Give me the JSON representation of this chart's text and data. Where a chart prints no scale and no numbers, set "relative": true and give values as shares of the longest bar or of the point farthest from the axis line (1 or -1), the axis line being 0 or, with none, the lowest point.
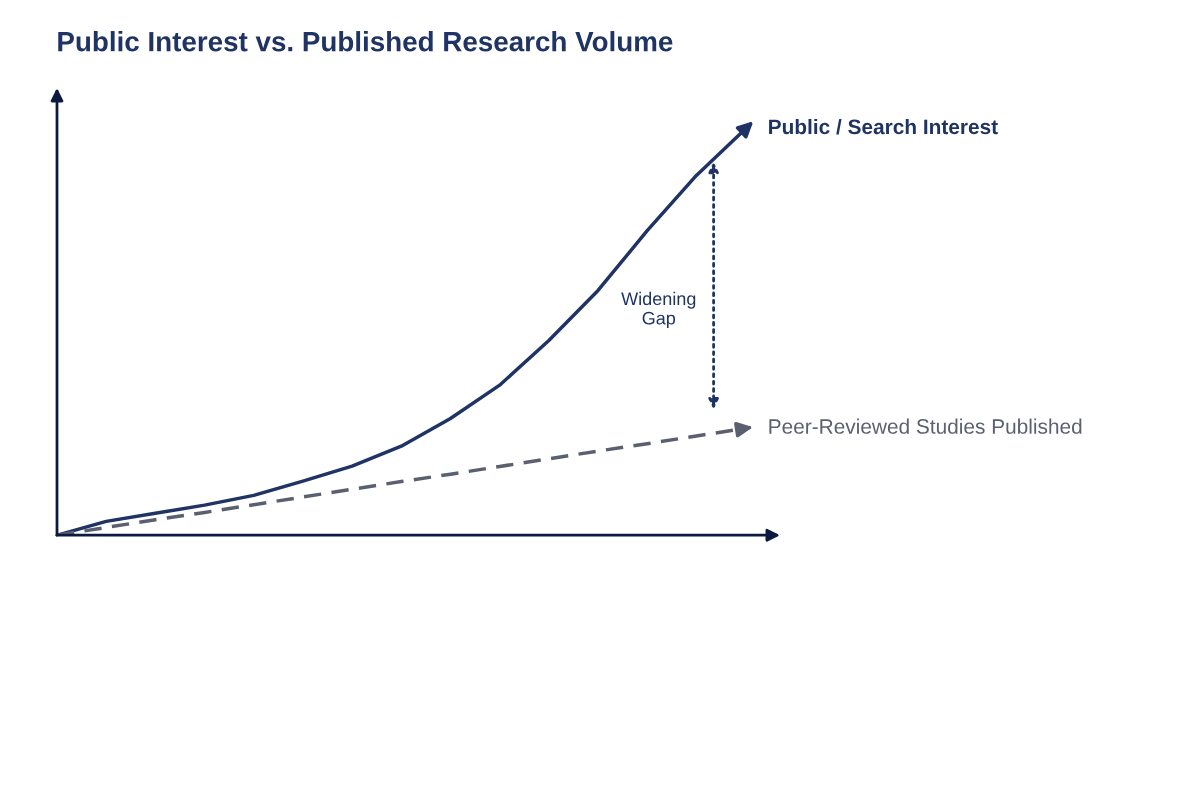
{
  "chart_data": {
    "type": "line",
    "title": "Public Interest vs. Published Research Volume",
    "relative": true,
    "categories": [
      null,
      null,
      null,
      null,
      null,
      null,
      null,
      null,
      null,
      null,
      null,
      null,
      null,
      null,
      null
    ],
    "series": [
      {
        "name": "Public / Search Interest",
        "color": "#1f3464",
        "line_style": "solid",
        "values": [
          0,
          0.034,
          0.054,
          0.074,
          0.098,
          0.133,
          0.17,
          0.219,
          0.287,
          0.369,
          0.479,
          0.602,
          0.749,
          0.885,
          1
        ]
      },
      {
        "name": "Peer-Reviewed Studies Published",
        "color": "#5a6070",
        "line_style": "dashed",
        "values": [
          0,
          0.019,
          0.038,
          0.056,
          0.075,
          0.094,
          0.113,
          0.132,
          0.15,
          0.169,
          0.188,
          0.207,
          0.225,
          0.244,
          0.263
        ]
      }
    ],
    "annotations": [
      "Widening Gap"
    ],
    "legend": "right",
    "marker": "none"
  }
}
